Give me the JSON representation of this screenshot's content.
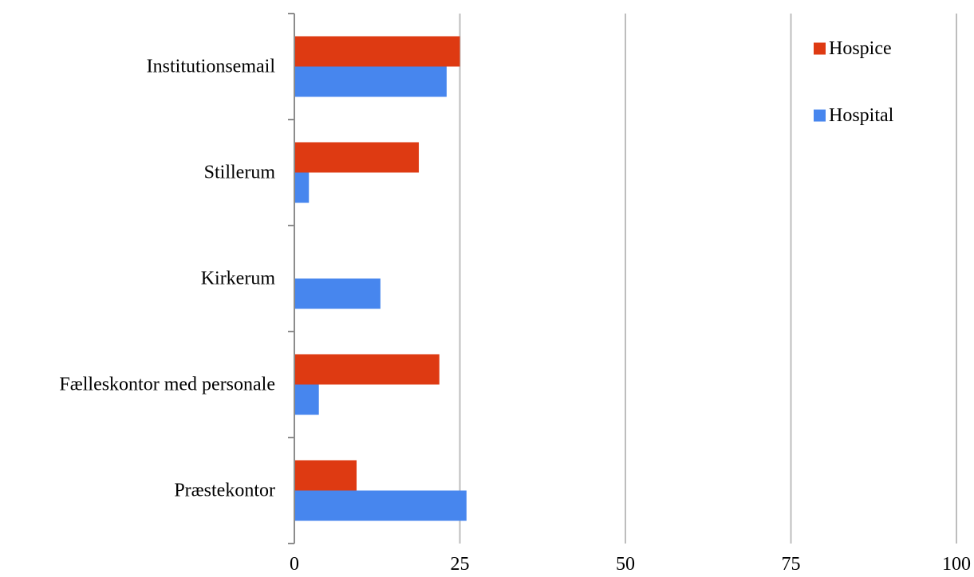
{
  "chart_data": {
    "type": "bar",
    "orientation": "horizontal",
    "categories": [
      "Institutionsemail",
      "Stillerum",
      "Kirkerum",
      "Fælleskontor med personale",
      "Præstekontor"
    ],
    "series": [
      {
        "name": "Hospice",
        "color": "#de3a12",
        "values": [
          25,
          18.8,
          0,
          21.9,
          9.4
        ]
      },
      {
        "name": "Hospital",
        "color": "#4786ee",
        "values": [
          23,
          2.2,
          13,
          3.7,
          26
        ]
      }
    ],
    "xlim": [
      0,
      100
    ],
    "xticks": [
      0,
      25,
      50,
      75,
      100
    ],
    "xtick_labels": [
      "0",
      "25",
      "50",
      "75",
      "100"
    ],
    "grid": "vertical",
    "legend_position": "top-right",
    "title": "",
    "xlabel": "",
    "ylabel": ""
  }
}
